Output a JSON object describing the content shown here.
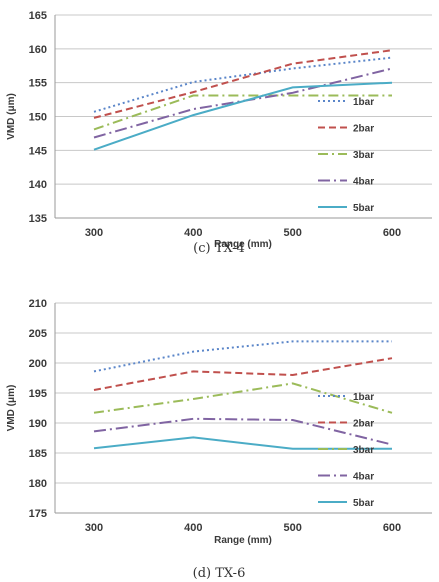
{
  "chart_data": [
    {
      "type": "line",
      "caption": "(c)  TX-4",
      "xlabel": "Range (mm)",
      "ylabel": "VMD (μm)",
      "categories": [
        "300",
        "400",
        "500",
        "600"
      ],
      "ylim": [
        135,
        165
      ],
      "yticks": [
        135,
        140,
        145,
        150,
        155,
        160,
        165
      ],
      "grid": "horizontal",
      "legend": "right",
      "series": [
        {
          "name": "1bar",
          "values": [
            150.7,
            155.1,
            157.1,
            158.7
          ],
          "color": "#5b86c9",
          "dash": "2,3"
        },
        {
          "name": "2bar",
          "values": [
            149.8,
            153.6,
            157.8,
            159.8
          ],
          "color": "#c0504d",
          "dash": "7,4"
        },
        {
          "name": "3bar",
          "values": [
            148.1,
            153.1,
            153.1,
            153.1
          ],
          "color": "#9bbb59",
          "dash": "10,4,2,4"
        },
        {
          "name": "4bar",
          "values": [
            146.9,
            151.1,
            153.5,
            157.1
          ],
          "color": "#8064a2",
          "dash": "12,4,2,4"
        },
        {
          "name": "5bar",
          "values": [
            145.1,
            150.2,
            154.3,
            155.0
          ],
          "color": "#4bacc6",
          "dash": ""
        }
      ]
    },
    {
      "type": "line",
      "caption": "(d)  TX-6",
      "xlabel": "Range (mm)",
      "ylabel": "VMD (μm)",
      "categories": [
        "300",
        "400",
        "500",
        "600"
      ],
      "ylim": [
        175,
        210
      ],
      "yticks": [
        175,
        180,
        185,
        190,
        195,
        200,
        205,
        210
      ],
      "grid": "horizontal",
      "legend": "right",
      "series": [
        {
          "name": "1bar",
          "values": [
            198.6,
            201.9,
            203.6,
            203.6
          ],
          "color": "#5b86c9",
          "dash": "2,3"
        },
        {
          "name": "2bar",
          "values": [
            195.5,
            198.6,
            198.0,
            200.8
          ],
          "color": "#c0504d",
          "dash": "7,4"
        },
        {
          "name": "3bar",
          "values": [
            191.7,
            194.0,
            196.6,
            191.7
          ],
          "color": "#9bbb59",
          "dash": "10,4,2,4"
        },
        {
          "name": "4bar",
          "values": [
            188.6,
            190.7,
            190.5,
            186.4
          ],
          "color": "#8064a2",
          "dash": "12,4,2,4"
        },
        {
          "name": "5bar",
          "values": [
            185.8,
            187.6,
            185.7,
            185.7
          ],
          "color": "#4bacc6",
          "dash": ""
        }
      ]
    }
  ]
}
